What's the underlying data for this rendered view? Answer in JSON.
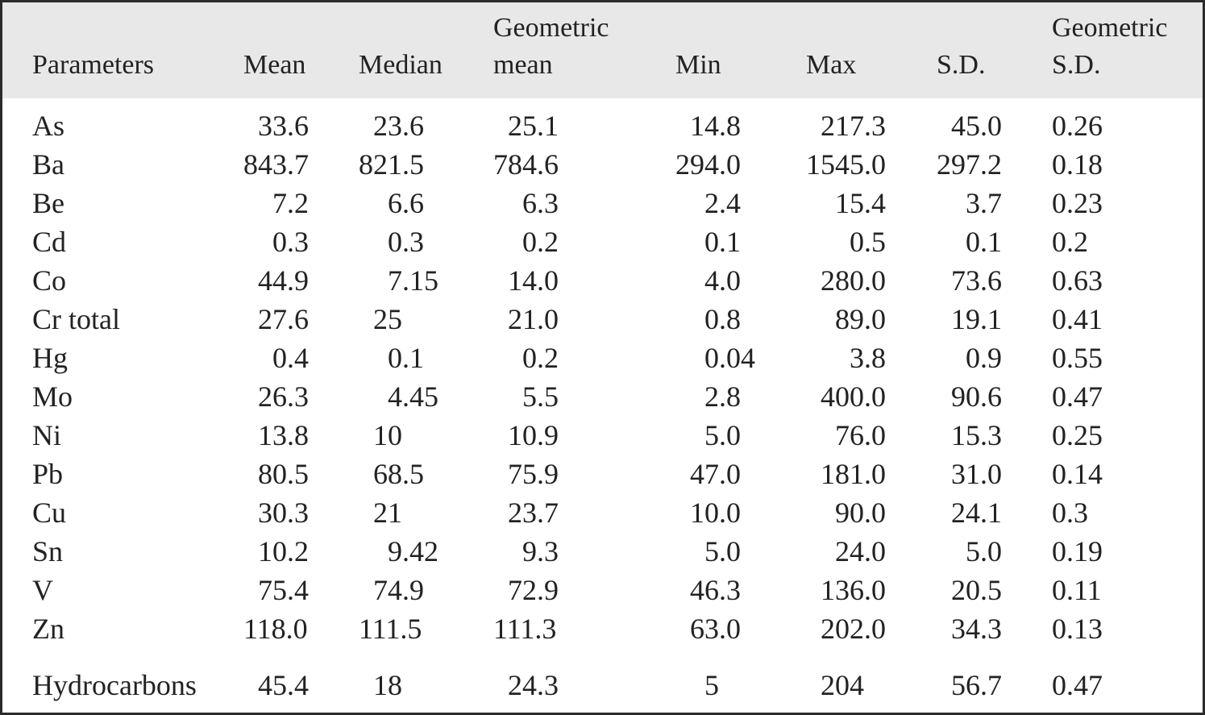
{
  "table": {
    "headers": [
      "Parameters",
      "Mean",
      "Median",
      "Geometric mean",
      "Min",
      "Max",
      "S.D.",
      "Geometric S.D."
    ],
    "rows": [
      [
        "As",
        "33.6",
        "23.6",
        "25.1",
        "14.8",
        "217.3",
        "45.0",
        "0.26"
      ],
      [
        "Ba",
        "843.7",
        "821.5",
        "784.6",
        "294.0",
        "1545.0",
        "297.2",
        "0.18"
      ],
      [
        "Be",
        "7.2",
        "6.6",
        "6.3",
        "2.4",
        "15.4",
        "3.7",
        "0.23"
      ],
      [
        "Cd",
        "0.3",
        "0.3",
        "0.2",
        "0.1",
        "0.5",
        "0.1",
        "0.2"
      ],
      [
        "Co",
        "44.9",
        "7.15",
        "14.0",
        "4.0",
        "280.0",
        "73.6",
        "0.63"
      ],
      [
        "Cr total",
        "27.6",
        "25",
        "21.0",
        "0.8",
        "89.0",
        "19.1",
        "0.41"
      ],
      [
        "Hg",
        "0.4",
        "0.1",
        "0.2",
        "0.04",
        "3.8",
        "0.9",
        "0.55"
      ],
      [
        "Mo",
        "26.3",
        "4.45",
        "5.5",
        "2.8",
        "400.0",
        "90.6",
        "0.47"
      ],
      [
        "Ni",
        "13.8",
        "10",
        "10.9",
        "5.0",
        "76.0",
        "15.3",
        "0.25"
      ],
      [
        "Pb",
        "80.5",
        "68.5",
        "75.9",
        "47.0",
        "181.0",
        "31.0",
        "0.14"
      ],
      [
        "Cu",
        "30.3",
        "21",
        "23.7",
        "10.0",
        "90.0",
        "24.1",
        "0.3"
      ],
      [
        "Sn",
        "10.2",
        "9.42",
        "9.3",
        "5.0",
        "24.0",
        "5.0",
        "0.19"
      ],
      [
        "V",
        "75.4",
        "74.9",
        "72.9",
        "46.3",
        "136.0",
        "20.5",
        "0.11"
      ],
      [
        "Zn",
        "118.0",
        "111.5",
        "111.3",
        "63.0",
        "202.0",
        "34.3",
        "0.13"
      ],
      [
        "Hydrocarbons",
        "45.4",
        "18",
        "24.3",
        "5",
        "204",
        "56.7",
        "0.47"
      ]
    ]
  }
}
